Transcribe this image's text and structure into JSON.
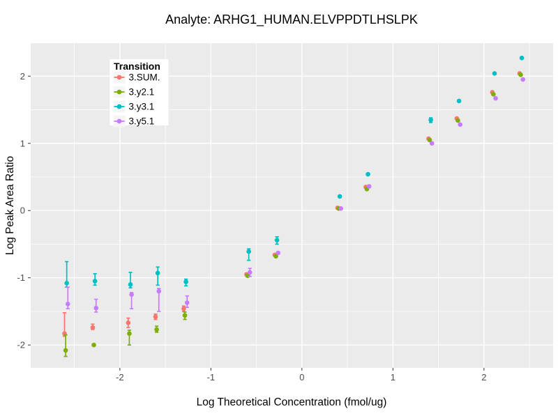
{
  "chart_data": {
    "type": "scatter",
    "title": "Analyte: ARHG1_HUMAN.ELVPPDTLHSLPK",
    "xlabel": "Log Theoretical Concentration (fmol/ug)",
    "ylabel": "Log Peak Area Ratio",
    "xlim": [
      -2.98,
      2.76
    ],
    "ylim": [
      -2.34,
      2.49
    ],
    "x_major_ticks": [
      -2,
      -1,
      0,
      1,
      2
    ],
    "x_minor_ticks": [
      -2.5,
      -1.5,
      -0.5,
      0.5,
      1.5,
      2.5
    ],
    "y_major_ticks": [
      -2,
      -1,
      0,
      1,
      2
    ],
    "y_minor_ticks": [
      -1.5,
      -0.5,
      0.5,
      1.5
    ],
    "grid": "major-and-minor",
    "panel_bg": "#EBEBEB",
    "grid_color": "#FFFFFF",
    "tick_color": "#333333",
    "tick_label_color": "#4D4D4D",
    "legend": {
      "title": "Transition",
      "position": "inside-top-left",
      "key_bg": "#F5F5F5"
    },
    "x": [
      -2.59,
      -2.28,
      -1.89,
      -1.59,
      -1.28,
      -0.59,
      -0.28,
      0.41,
      0.72,
      1.41,
      1.72,
      2.11,
      2.41
    ],
    "series": [
      {
        "name": "3.SUM.",
        "color": "#F8766D",
        "y": [
          -1.83,
          -1.74,
          -1.67,
          -1.58,
          -1.46,
          -0.95,
          -0.66,
          0.04,
          0.35,
          1.07,
          1.37,
          1.76,
          2.04
        ],
        "lo": [
          -1.87,
          -1.77,
          -1.74,
          -1.62,
          -1.5,
          -0.97,
          -0.67,
          0.03,
          0.34,
          1.06,
          1.36,
          1.75,
          2.03
        ],
        "hi": [
          -1.52,
          -1.69,
          -1.6,
          -1.54,
          -1.42,
          -0.93,
          -0.65,
          0.05,
          0.36,
          1.08,
          1.38,
          1.77,
          2.05
        ]
      },
      {
        "name": "3.y2.1",
        "color": "#7CAE00",
        "y": [
          -2.08,
          -2.0,
          -1.83,
          -1.77,
          -1.56,
          -0.97,
          -0.68,
          0.03,
          0.32,
          1.05,
          1.34,
          1.73,
          2.02
        ],
        "lo": [
          -2.17,
          -2.01,
          -2.0,
          -1.81,
          -1.62,
          -0.99,
          -0.69,
          0.02,
          0.31,
          1.04,
          1.33,
          1.72,
          2.01
        ],
        "hi": [
          -1.85,
          -1.99,
          -1.78,
          -1.72,
          -1.51,
          -0.95,
          -0.67,
          0.04,
          0.33,
          1.06,
          1.35,
          1.74,
          2.03
        ]
      },
      {
        "name": "3.y3.1",
        "color": "#00BFC4",
        "y": [
          -1.08,
          -1.05,
          -1.1,
          -0.93,
          -1.06,
          -0.61,
          -0.44,
          0.21,
          0.54,
          1.35,
          1.63,
          2.04,
          2.27
        ],
        "lo": [
          -1.14,
          -1.11,
          -1.15,
          -1.11,
          -1.12,
          -0.74,
          -0.5,
          0.2,
          0.53,
          1.31,
          1.62,
          2.03,
          2.26
        ],
        "hi": [
          -0.76,
          -0.94,
          -0.92,
          -0.84,
          -1.02,
          -0.57,
          -0.39,
          0.22,
          0.55,
          1.38,
          1.64,
          2.05,
          2.28
        ]
      },
      {
        "name": "3.y5.1",
        "color": "#C77CFF",
        "y": [
          -1.39,
          -1.45,
          -1.25,
          -1.2,
          -1.37,
          -0.92,
          -0.63,
          0.03,
          0.36,
          1.0,
          1.28,
          1.67,
          1.95
        ],
        "lo": [
          -1.46,
          -1.51,
          -1.46,
          -1.5,
          -1.44,
          -0.98,
          -0.64,
          0.02,
          0.35,
          0.99,
          1.27,
          1.66,
          1.94
        ],
        "hi": [
          -1.14,
          -1.32,
          -1.22,
          -1.16,
          -1.27,
          -0.86,
          -0.62,
          0.04,
          0.37,
          1.01,
          1.29,
          1.68,
          1.96
        ]
      }
    ]
  }
}
